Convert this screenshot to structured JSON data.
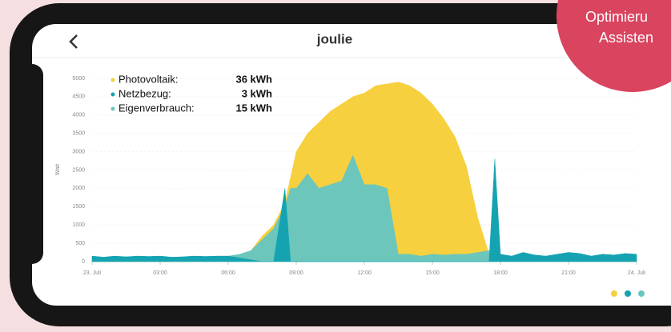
{
  "header": {
    "logo": "joulie"
  },
  "badge": {
    "lines": [
      "Optimieru",
      "Assisten"
    ]
  },
  "chart_data": {
    "type": "area",
    "y_label": "Watt",
    "xlim": [
      0,
      24
    ],
    "xticks": [
      {
        "value": 0,
        "label": "23. Juli"
      },
      {
        "value": 3,
        "label": "03:00"
      },
      {
        "value": 6,
        "label": "06:00"
      },
      {
        "value": 9,
        "label": "09:00"
      },
      {
        "value": 12,
        "label": "12:00"
      },
      {
        "value": 15,
        "label": "15:00"
      },
      {
        "value": 18,
        "label": "18:00"
      },
      {
        "value": 21,
        "label": "21:00"
      },
      {
        "value": 24,
        "label": "24. Juli"
      }
    ],
    "ylim": [
      0,
      5000
    ],
    "yticks": [
      0,
      500,
      1000,
      1500,
      2000,
      2500,
      3000,
      3500,
      4000,
      4500,
      5000
    ],
    "grid": true,
    "x": [
      0,
      0.5,
      1,
      1.5,
      2,
      2.5,
      3,
      3.5,
      4,
      4.5,
      5,
      5.5,
      6,
      6.5,
      7,
      7.5,
      8,
      8.5,
      8.75,
      9,
      9.5,
      10,
      10.5,
      11,
      11.5,
      12,
      12.5,
      13,
      13.5,
      14,
      14.5,
      15,
      15.5,
      16,
      16.5,
      17,
      17.5,
      17.75,
      18,
      18.5,
      19,
      19.5,
      20,
      20.5,
      21,
      21.5,
      22,
      22.5,
      23,
      23.5,
      24
    ],
    "series": [
      {
        "name": "Photovoltaik:",
        "total": "36 kWh",
        "color": "#f6d03e",
        "values": [
          0,
          0,
          0,
          0,
          0,
          0,
          0,
          0,
          0,
          0,
          0,
          0,
          0,
          50,
          300,
          700,
          1000,
          1600,
          2300,
          3000,
          3500,
          3800,
          4100,
          4300,
          4500,
          4600,
          4800,
          4850,
          4900,
          4800,
          4600,
          4300,
          3900,
          3400,
          2600,
          1200,
          200,
          50,
          0,
          0,
          0,
          0,
          0,
          0,
          0,
          0,
          0,
          0,
          0,
          0,
          0
        ]
      },
      {
        "name": "Netzbezug:",
        "total": "3 kWh",
        "color": "#15a3b2",
        "values": [
          150,
          120,
          150,
          130,
          150,
          140,
          150,
          120,
          130,
          150,
          140,
          150,
          150,
          100,
          50,
          0,
          0,
          2000,
          0,
          0,
          0,
          0,
          0,
          0,
          0,
          0,
          0,
          0,
          0,
          0,
          0,
          0,
          0,
          0,
          0,
          0,
          0,
          2800,
          200,
          150,
          250,
          180,
          150,
          200,
          250,
          220,
          150,
          200,
          180,
          220,
          200
        ]
      },
      {
        "name": "Eigenverbrauch:",
        "total": "15 kWh",
        "color": "#6cc6bb",
        "values": [
          150,
          120,
          150,
          130,
          150,
          140,
          150,
          120,
          130,
          150,
          140,
          150,
          150,
          200,
          300,
          600,
          900,
          1500,
          2000,
          2000,
          2400,
          2000,
          2100,
          2200,
          2900,
          2100,
          2100,
          2000,
          200,
          200,
          150,
          200,
          180,
          200,
          200,
          250,
          300,
          400,
          200,
          150,
          250,
          180,
          150,
          200,
          250,
          220,
          150,
          200,
          180,
          220,
          200
        ]
      }
    ]
  }
}
